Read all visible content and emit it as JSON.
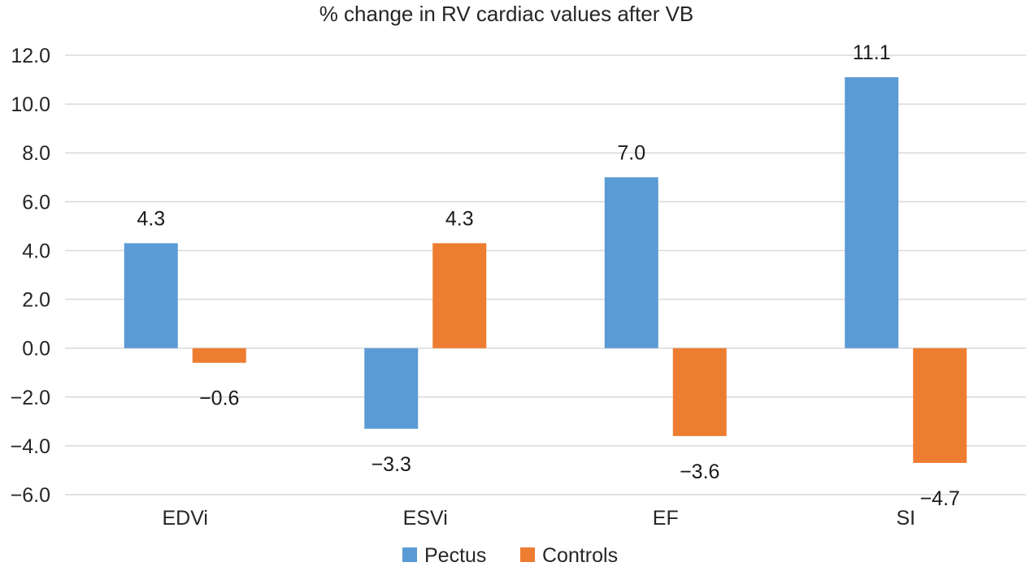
{
  "chart_data": {
    "type": "bar",
    "title": "% change in RV cardiac values after VB",
    "categories": [
      "EDVi",
      "ESVi",
      "EF",
      "SI"
    ],
    "series": [
      {
        "name": "Pectus",
        "values": [
          4.3,
          -3.3,
          7.0,
          11.1
        ],
        "labels": [
          "4.3",
          "−3.3",
          "7.0",
          "11.1"
        ],
        "color": "#5b9bd5"
      },
      {
        "name": "Controls",
        "values": [
          -0.6,
          4.3,
          -3.6,
          -4.7
        ],
        "labels": [
          "−0.6",
          "4.3",
          "−3.6",
          "−4.7"
        ],
        "color": "#ed7d31"
      }
    ],
    "ylim": [
      -6,
      12
    ],
    "yticks": [
      12,
      10,
      8,
      6,
      4,
      2,
      0,
      -2,
      -4,
      -6
    ],
    "ytick_labels": [
      "12.0",
      "10.0",
      "8.0",
      "6.0",
      "4.0",
      "2.0",
      "0.0",
      "−2.0",
      "−4.0",
      "−6.0"
    ],
    "grid": true,
    "legend": "bottom-center"
  }
}
